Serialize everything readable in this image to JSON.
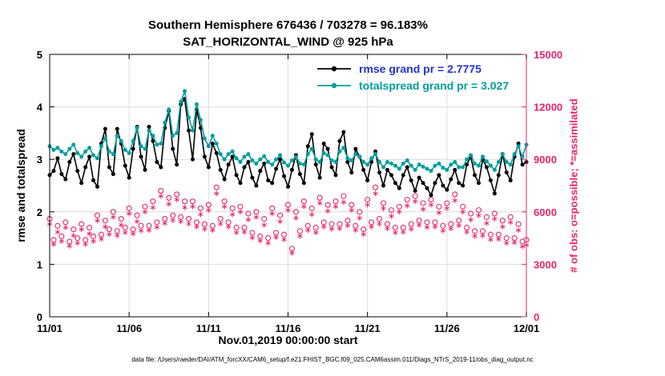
{
  "colors": {
    "grid": "#dcdcdc",
    "obs_pink": "#e8246c",
    "teal": "#009e9e",
    "rmse_black": "#000000",
    "legend_text_blue": "#2233cc"
  },
  "caption": "data file: /Users/raeder/DAI/ATM_forcXX/CAM6_setup/f.e21.FHIST_BGC.f09_025.CAM6assim.011/Diags_NTrS_2019-11/obs_diag_output.nc",
  "chart_data": {
    "type": "line",
    "title1": "Southern Hemisphere 676436 / 703278 = 96.183%",
    "title2": "SAT_HORIZONTAL_WIND @ 925 hPa",
    "xlabel": "Nov.01,2019 00:00:00 start",
    "ylabel_left": "rmse and totalspread",
    "ylabel_right": "# of obs: o=possible; *=assimilated",
    "x_range_days": [
      0,
      30
    ],
    "points_per_day": 4,
    "x_tick_positions_days": [
      0,
      5,
      10,
      15,
      20,
      25,
      30
    ],
    "x_tick_labels": [
      "11/01",
      "11/06",
      "11/11",
      "11/16",
      "11/21",
      "11/26",
      "12/01"
    ],
    "y_left_axis": {
      "range": [
        0,
        5
      ],
      "ticks": [
        0,
        1,
        2,
        3,
        4,
        5
      ],
      "color": "#000000"
    },
    "y_right_axis": {
      "range": [
        0,
        15000
      ],
      "ticks": [
        0,
        3000,
        6000,
        9000,
        12000,
        15000
      ],
      "tick_labels": [
        "0",
        "3000",
        "6000",
        "9000",
        "12000",
        "15000"
      ],
      "color": "#e8246c"
    },
    "grid": true,
    "legend": [
      {
        "label": "rmse grand pr = 2.7775",
        "line_color": "#000000",
        "text_color": "#2233cc"
      },
      {
        "label": "totalspread grand pr = 3.027",
        "line_color": "#009e9e",
        "text_color": "#009e9e"
      }
    ],
    "series": [
      {
        "name": "rmse",
        "color": "#000000",
        "axis": "left",
        "values": [
          2.7,
          2.78,
          3.02,
          2.72,
          2.62,
          2.95,
          3.1,
          2.78,
          2.55,
          2.85,
          3.05,
          2.6,
          2.48,
          3.3,
          3.58,
          2.85,
          2.72,
          3.58,
          3.3,
          2.88,
          2.65,
          3.2,
          3.62,
          3.05,
          2.8,
          3.62,
          3.35,
          2.95,
          2.85,
          3.6,
          3.92,
          3.2,
          2.9,
          4.05,
          4.15,
          3.55,
          3.0,
          3.95,
          3.6,
          3.05,
          2.85,
          3.3,
          3.12,
          2.8,
          2.62,
          2.9,
          3.05,
          2.7,
          2.55,
          2.85,
          2.95,
          2.65,
          2.5,
          2.78,
          2.92,
          2.6,
          2.55,
          2.82,
          3.0,
          2.68,
          2.48,
          2.8,
          3.08,
          2.72,
          2.55,
          3.25,
          3.48,
          2.9,
          2.65,
          3.3,
          3.2,
          2.85,
          2.7,
          3.35,
          3.52,
          2.95,
          2.75,
          3.2,
          3.05,
          2.8,
          2.6,
          2.95,
          3.15,
          2.75,
          2.5,
          2.8,
          2.7,
          2.55,
          2.45,
          2.7,
          2.85,
          2.6,
          2.4,
          2.65,
          2.55,
          2.45,
          2.32,
          2.55,
          2.7,
          2.5,
          2.42,
          2.62,
          2.8,
          2.55,
          2.5,
          2.9,
          3.05,
          2.7,
          2.55,
          3.0,
          2.85,
          2.6,
          2.35,
          2.7,
          3.1,
          2.75,
          2.6,
          3.05,
          3.3,
          2.9,
          2.95
        ]
      },
      {
        "name": "totalspread",
        "color": "#009e9e",
        "axis": "left",
        "values": [
          3.25,
          3.18,
          3.22,
          3.15,
          3.1,
          3.2,
          3.28,
          3.12,
          3.05,
          3.15,
          3.22,
          3.08,
          3.02,
          3.25,
          3.4,
          3.15,
          3.1,
          3.45,
          3.35,
          3.18,
          3.12,
          3.35,
          3.6,
          3.25,
          3.2,
          3.55,
          3.45,
          3.28,
          3.3,
          3.7,
          3.95,
          3.45,
          3.5,
          4.1,
          4.3,
          3.8,
          3.55,
          4.05,
          3.75,
          3.4,
          3.25,
          3.45,
          3.3,
          3.1,
          3.0,
          3.1,
          3.15,
          3.02,
          2.95,
          3.05,
          3.1,
          2.98,
          2.92,
          3.0,
          3.06,
          2.95,
          2.9,
          3.0,
          3.08,
          2.94,
          2.88,
          2.98,
          3.05,
          2.92,
          2.9,
          3.1,
          3.2,
          3.0,
          2.95,
          3.12,
          3.08,
          2.98,
          2.95,
          3.15,
          3.22,
          3.02,
          2.98,
          3.1,
          3.05,
          2.95,
          2.9,
          3.02,
          3.1,
          2.95,
          2.85,
          2.95,
          2.92,
          2.88,
          2.82,
          2.92,
          2.98,
          2.88,
          2.8,
          2.9,
          2.86,
          2.82,
          2.78,
          2.88,
          2.92,
          2.84,
          2.8,
          2.9,
          2.95,
          2.85,
          2.85,
          3.0,
          3.08,
          2.92,
          2.88,
          3.05,
          2.96,
          2.88,
          2.8,
          2.95,
          3.1,
          2.95,
          2.9,
          3.1,
          3.25,
          3.05,
          3.28
        ]
      }
    ],
    "scatter": [
      {
        "name": "possible obs",
        "marker": "circle",
        "color": "#e8246c",
        "axis": "right",
        "values": [
          5600,
          4400,
          5200,
          4600,
          5400,
          4300,
          5000,
          4500,
          5300,
          4400,
          5100,
          4600,
          5800,
          4700,
          5500,
          5000,
          6000,
          4900,
          5600,
          5100,
          6200,
          5000,
          5800,
          5200,
          6300,
          5200,
          6600,
          5400,
          7200,
          5600,
          6800,
          5800,
          7000,
          5700,
          6600,
          5600,
          6600,
          5400,
          6200,
          5300,
          6400,
          5200,
          7400,
          5600,
          6600,
          5400,
          6200,
          5100,
          6300,
          5100,
          5900,
          4800,
          6000,
          4600,
          5600,
          4500,
          6200,
          4800,
          5800,
          4700,
          6400,
          3900,
          6000,
          4900,
          6600,
          5200,
          6200,
          5100,
          6800,
          5400,
          6400,
          5300,
          6600,
          5300,
          6900,
          5500,
          6400,
          5200,
          6000,
          5000,
          6700,
          5400,
          7400,
          5600,
          6500,
          5300,
          6100,
          5100,
          6300,
          5100,
          6700,
          5300,
          6900,
          5500,
          6500,
          5400,
          6700,
          5400,
          6300,
          5200,
          6500,
          5300,
          7000,
          5500,
          6300,
          5100,
          5900,
          4900,
          6100,
          4900,
          5700,
          4700,
          5900,
          4700,
          5500,
          4500,
          5700,
          4500,
          5300,
          4300,
          4400
        ]
      },
      {
        "name": "assimilated obs",
        "marker": "asterisk",
        "color": "#e8246c",
        "axis": "right",
        "values": [
          5300,
          4150,
          4850,
          4320,
          5100,
          4050,
          4650,
          4220,
          5000,
          4150,
          4750,
          4320,
          5500,
          4450,
          5150,
          4720,
          5700,
          4650,
          5250,
          4820,
          5900,
          4750,
          5450,
          4920,
          6000,
          4950,
          6250,
          5120,
          6900,
          5350,
          6450,
          5520,
          6700,
          5450,
          6250,
          5320,
          6300,
          5150,
          5850,
          5020,
          6100,
          4950,
          7050,
          5320,
          6300,
          5150,
          5850,
          4820,
          6000,
          4850,
          5550,
          4520,
          5700,
          4350,
          5250,
          4220,
          5900,
          4550,
          5450,
          4420,
          6100,
          3650,
          5650,
          4620,
          6300,
          4950,
          5850,
          4820,
          6500,
          5150,
          6050,
          5020,
          6300,
          5050,
          6550,
          5220,
          6100,
          4950,
          5650,
          4720,
          6400,
          5150,
          7050,
          5320,
          6200,
          5050,
          5750,
          4820,
          6000,
          4850,
          6350,
          5020,
          6600,
          5250,
          6150,
          5120,
          6400,
          5150,
          5950,
          4920,
          6200,
          5050,
          6650,
          5220,
          6000,
          4850,
          5550,
          4620,
          5800,
          4650,
          5350,
          4420,
          5600,
          4450,
          5150,
          4220,
          5400,
          4250,
          4950,
          4020,
          4100
        ]
      }
    ]
  }
}
